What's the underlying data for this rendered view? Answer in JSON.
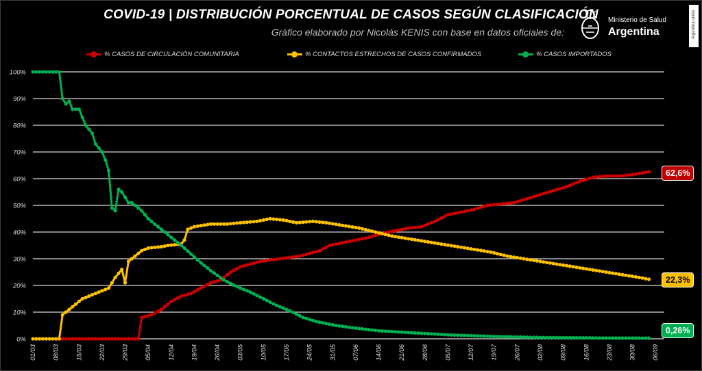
{
  "header": {
    "title": "COVID-19  |  DISTRIBUCIÓN PORCENTUAL DE CASOS SEGÚN CLASIFICACIÓN",
    "subtitle": "Gráfico elaborado por Nicolás KENIS con base en datos oficiales de:"
  },
  "logo": {
    "ministry": "Ministerio de Salud",
    "country": "Argentina",
    "side_tag": "Argentina unida",
    "icon": "argentina-coat-of-arms"
  },
  "colors": {
    "red": "#cc0000",
    "yellow": "#ffc000",
    "green": "#00b050"
  },
  "badges": {
    "red": "62,6%",
    "yellow": "22,3%",
    "green": "0,26%"
  },
  "chart_data": {
    "type": "line",
    "x_start": "01/03",
    "x_end": "06/09",
    "num_days": 190,
    "y_range": [
      0,
      100
    ],
    "y_ticks": [
      "0%",
      "10%",
      "20%",
      "30%",
      "40%",
      "50%",
      "60%",
      "70%",
      "80%",
      "90%",
      "100%"
    ],
    "x_ticks": [
      "01/03",
      "08/03",
      "15/03",
      "22/03",
      "29/03",
      "05/04",
      "12/04",
      "19/04",
      "26/04",
      "03/05",
      "10/05",
      "17/05",
      "24/05",
      "31/05",
      "07/06",
      "14/06",
      "21/06",
      "28/06",
      "05/07",
      "12/07",
      "19/07",
      "26/07",
      "02/08",
      "09/08",
      "16/08",
      "23/08",
      "30/08",
      "06/09"
    ],
    "grid": true,
    "legend_position": "top",
    "series": [
      {
        "name": "% CASOS DE CIRCULACIÓN COMUNITARIA",
        "color": "#cc0000",
        "points": [
          [
            "01/03",
            0
          ],
          [
            "02/04",
            0
          ],
          [
            "03/04",
            8
          ],
          [
            "06/04",
            9
          ],
          [
            "09/04",
            11
          ],
          [
            "12/04",
            14
          ],
          [
            "15/04",
            16
          ],
          [
            "18/04",
            17
          ],
          [
            "21/04",
            19
          ],
          [
            "24/04",
            21
          ],
          [
            "27/04",
            22
          ],
          [
            "30/04",
            25
          ],
          [
            "03/05",
            27
          ],
          [
            "06/05",
            28
          ],
          [
            "09/05",
            29
          ],
          [
            "12/05",
            29.5
          ],
          [
            "15/05",
            30
          ],
          [
            "18/05",
            30.5
          ],
          [
            "21/05",
            31
          ],
          [
            "24/05",
            32
          ],
          [
            "27/05",
            33
          ],
          [
            "30/05",
            35
          ],
          [
            "03/06",
            36
          ],
          [
            "07/06",
            37
          ],
          [
            "11/06",
            38
          ],
          [
            "15/06",
            39.5
          ],
          [
            "19/06",
            40.5
          ],
          [
            "23/06",
            41.5
          ],
          [
            "27/06",
            42
          ],
          [
            "01/07",
            44
          ],
          [
            "05/07",
            46.5
          ],
          [
            "09/07",
            47.5
          ],
          [
            "13/07",
            48.5
          ],
          [
            "17/07",
            50
          ],
          [
            "21/07",
            50.5
          ],
          [
            "25/07",
            51
          ],
          [
            "29/07",
            52.5
          ],
          [
            "02/08",
            54
          ],
          [
            "06/08",
            55.5
          ],
          [
            "10/08",
            57
          ],
          [
            "14/08",
            59
          ],
          [
            "18/08",
            60.5
          ],
          [
            "22/08",
            61
          ],
          [
            "26/08",
            61
          ],
          [
            "30/08",
            61.5
          ],
          [
            "04/09",
            62.6
          ]
        ]
      },
      {
        "name": "% CONTACTOS ESTRECHOS DE CASOS CONFIRMADOS",
        "color": "#ffc000",
        "points": [
          [
            "01/03",
            0
          ],
          [
            "09/03",
            0
          ],
          [
            "10/03",
            9
          ],
          [
            "12/03",
            11
          ],
          [
            "14/03",
            13
          ],
          [
            "16/03",
            15
          ],
          [
            "18/03",
            16
          ],
          [
            "20/03",
            17
          ],
          [
            "22/03",
            18
          ],
          [
            "24/03",
            19
          ],
          [
            "26/03",
            23
          ],
          [
            "28/03",
            26
          ],
          [
            "29/03",
            21
          ],
          [
            "30/03",
            29
          ],
          [
            "01/04",
            31
          ],
          [
            "03/04",
            33
          ],
          [
            "05/04",
            34
          ],
          [
            "09/04",
            34.5
          ],
          [
            "11/04",
            35
          ],
          [
            "15/04",
            35.5
          ],
          [
            "16/04",
            37
          ],
          [
            "17/04",
            41
          ],
          [
            "19/04",
            42
          ],
          [
            "24/04",
            43
          ],
          [
            "29/04",
            43
          ],
          [
            "03/05",
            43.5
          ],
          [
            "08/05",
            44
          ],
          [
            "12/05",
            45
          ],
          [
            "16/05",
            44.5
          ],
          [
            "20/05",
            43.5
          ],
          [
            "25/05",
            44
          ],
          [
            "29/05",
            43.5
          ],
          [
            "03/06",
            42.5
          ],
          [
            "08/06",
            41.5
          ],
          [
            "13/06",
            40
          ],
          [
            "18/06",
            38.5
          ],
          [
            "23/06",
            37.5
          ],
          [
            "28/06",
            36.5
          ],
          [
            "03/07",
            35.5
          ],
          [
            "08/07",
            34.5
          ],
          [
            "13/07",
            33.5
          ],
          [
            "18/07",
            32.5
          ],
          [
            "23/07",
            31
          ],
          [
            "28/07",
            30
          ],
          [
            "02/08",
            29
          ],
          [
            "07/08",
            28
          ],
          [
            "12/08",
            27
          ],
          [
            "17/08",
            26
          ],
          [
            "22/08",
            25
          ],
          [
            "27/08",
            24
          ],
          [
            "01/09",
            23
          ],
          [
            "04/09",
            22.3
          ]
        ]
      },
      {
        "name": "% CASOS IMPORTADOS",
        "color": "#00b050",
        "points": [
          [
            "01/03",
            100
          ],
          [
            "09/03",
            100
          ],
          [
            "10/03",
            90
          ],
          [
            "11/03",
            88
          ],
          [
            "12/03",
            89
          ],
          [
            "13/03",
            86
          ],
          [
            "15/03",
            86
          ],
          [
            "17/03",
            80
          ],
          [
            "19/03",
            77
          ],
          [
            "20/03",
            73
          ],
          [
            "22/03",
            70
          ],
          [
            "23/03",
            67
          ],
          [
            "24/03",
            63
          ],
          [
            "25/03",
            49
          ],
          [
            "26/03",
            48
          ],
          [
            "27/03",
            56
          ],
          [
            "28/03",
            55
          ],
          [
            "29/03",
            53
          ],
          [
            "30/03",
            51
          ],
          [
            "31/03",
            51
          ],
          [
            "01/04",
            50
          ],
          [
            "03/04",
            48
          ],
          [
            "05/04",
            45
          ],
          [
            "08/04",
            42
          ],
          [
            "12/04",
            38
          ],
          [
            "16/04",
            34
          ],
          [
            "20/04",
            29.5
          ],
          [
            "24/04",
            25.5
          ],
          [
            "28/04",
            22
          ],
          [
            "02/05",
            19.5
          ],
          [
            "06/05",
            17.5
          ],
          [
            "10/05",
            15
          ],
          [
            "14/05",
            12.5
          ],
          [
            "18/05",
            10.5
          ],
          [
            "22/05",
            8
          ],
          [
            "26/05",
            6.5
          ],
          [
            "01/06",
            5
          ],
          [
            "07/06",
            4
          ],
          [
            "14/06",
            3
          ],
          [
            "21/06",
            2.5
          ],
          [
            "28/06",
            2
          ],
          [
            "05/07",
            1.5
          ],
          [
            "12/07",
            1.2
          ],
          [
            "19/07",
            0.9
          ],
          [
            "26/07",
            0.7
          ],
          [
            "02/08",
            0.5
          ],
          [
            "12/08",
            0.4
          ],
          [
            "22/08",
            0.3
          ],
          [
            "04/09",
            0.26
          ]
        ]
      }
    ]
  }
}
